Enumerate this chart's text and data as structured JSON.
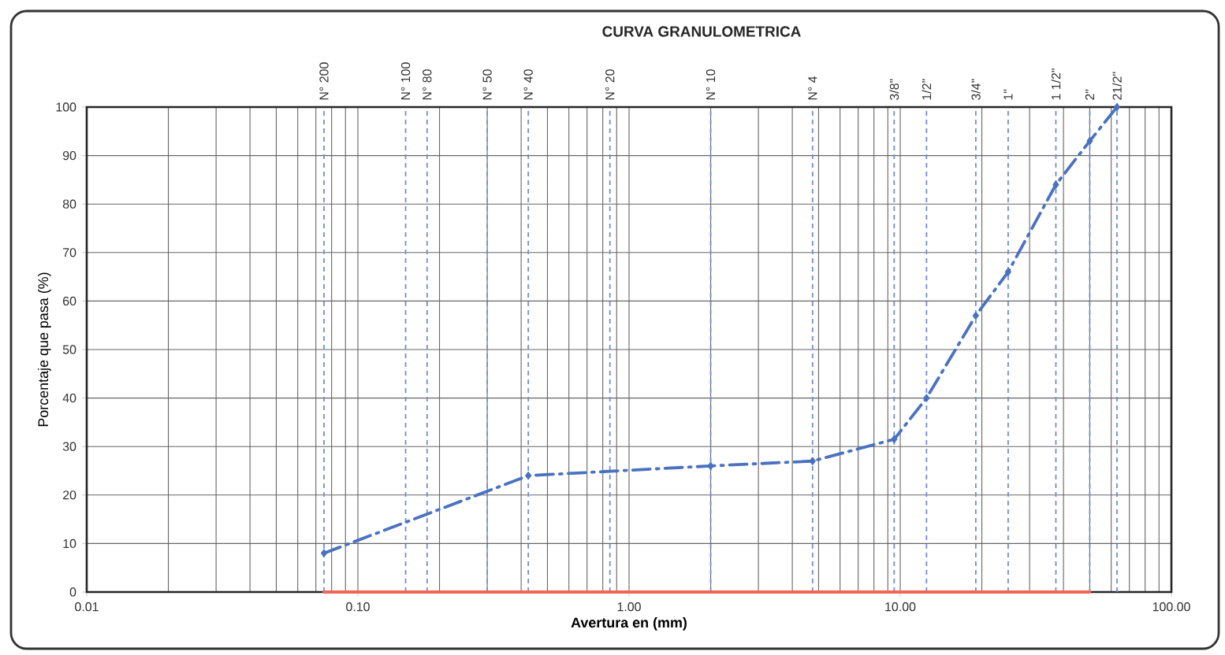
{
  "chart_data": {
    "type": "line",
    "title": "CURVA GRANULOMETRICA",
    "xlabel": "Avertura en (mm)",
    "ylabel": "Porcentaje que pasa (%)",
    "log": "x",
    "xlim": [
      0.01,
      100
    ],
    "xticks": [
      0.01,
      {
        "value": 0.1,
        "label": "0.10"
      },
      {
        "value": 1,
        "label": "1.00"
      },
      {
        "value": 10,
        "label": "10.00"
      },
      {
        "value": 100,
        "label": "100.00"
      }
    ],
    "ylim": [
      0,
      100
    ],
    "yticks": [
      0,
      10,
      20,
      30,
      40,
      50,
      60,
      70,
      80,
      90,
      100
    ],
    "grid": true,
    "marker": "diamond",
    "line_style": "dashdot",
    "series": [
      {
        "color": "#4a72c0",
        "x": [
          0.075,
          0.425,
          2,
          4.75,
          9.5,
          12.5,
          19,
          25,
          37.5,
          50,
          63
        ],
        "values": [
          8,
          24,
          26,
          27,
          31.5,
          40,
          57,
          66,
          84,
          93,
          100
        ]
      },
      {
        "color": "#f26552",
        "x": [
          0.075,
          50
        ],
        "values": [
          0,
          0
        ],
        "marker": "none",
        "line_style": "solid"
      }
    ],
    "ref_lines": [
      {
        "axis": "x",
        "value": 0.075,
        "color": "#6f8fd0",
        "line_style": "dashed"
      },
      {
        "axis": "x",
        "value": 0.15,
        "color": "#6f8fd0",
        "line_style": "dashed"
      },
      {
        "axis": "x",
        "value": 0.18,
        "color": "#6f8fd0",
        "line_style": "dashed"
      },
      {
        "axis": "x",
        "value": 0.3,
        "color": "#6f8fd0",
        "line_style": "dashed"
      },
      {
        "axis": "x",
        "value": 0.425,
        "color": "#6f8fd0",
        "line_style": "dashed"
      },
      {
        "axis": "x",
        "value": 0.85,
        "color": "#6f8fd0",
        "line_style": "dashed"
      },
      {
        "axis": "x",
        "value": 2,
        "color": "#6f8fd0",
        "line_style": "dashed"
      },
      {
        "axis": "x",
        "value": 4.75,
        "color": "#6f8fd0",
        "line_style": "dashed"
      },
      {
        "axis": "x",
        "value": 9.5,
        "color": "#6f8fd0",
        "line_style": "dashed"
      },
      {
        "axis": "x",
        "value": 12.5,
        "color": "#6f8fd0",
        "line_style": "dashed"
      },
      {
        "axis": "x",
        "value": 19,
        "color": "#6f8fd0",
        "line_style": "dashed"
      },
      {
        "axis": "x",
        "value": 25,
        "color": "#6f8fd0",
        "line_style": "dashed"
      },
      {
        "axis": "x",
        "value": 37.5,
        "color": "#6f8fd0",
        "line_style": "dashed"
      },
      {
        "axis": "x",
        "value": 50,
        "color": "#6f8fd0",
        "line_style": "dashed"
      },
      {
        "axis": "x",
        "value": 63,
        "color": "#6f8fd0",
        "line_style": "dashed"
      }
    ],
    "annotations": [
      {
        "text": "N° 200",
        "x": 0.075,
        "y": 100
      },
      {
        "text": "N° 100",
        "x": 0.15,
        "y": 100
      },
      {
        "text": "N° 80",
        "x": 0.18,
        "y": 100
      },
      {
        "text": "N° 50",
        "x": 0.3,
        "y": 100
      },
      {
        "text": "N° 40",
        "x": 0.425,
        "y": 100
      },
      {
        "text": "N° 20",
        "x": 0.85,
        "y": 100
      },
      {
        "text": "N° 10",
        "x": 2,
        "y": 100
      },
      {
        "text": "N° 4",
        "x": 4.75,
        "y": 100
      },
      {
        "text": "3/8\"",
        "x": 9.5,
        "y": 100
      },
      {
        "text": "1/2\"",
        "x": 12.5,
        "y": 100
      },
      {
        "text": "3/4\"",
        "x": 19,
        "y": 100
      },
      {
        "text": "1\"",
        "x": 25,
        "y": 100
      },
      {
        "text": "1 1/2\"",
        "x": 37.5,
        "y": 100
      },
      {
        "text": "2\"",
        "x": 50,
        "y": 100
      },
      {
        "text": "21/2\"",
        "x": 63,
        "y": 100
      }
    ]
  }
}
